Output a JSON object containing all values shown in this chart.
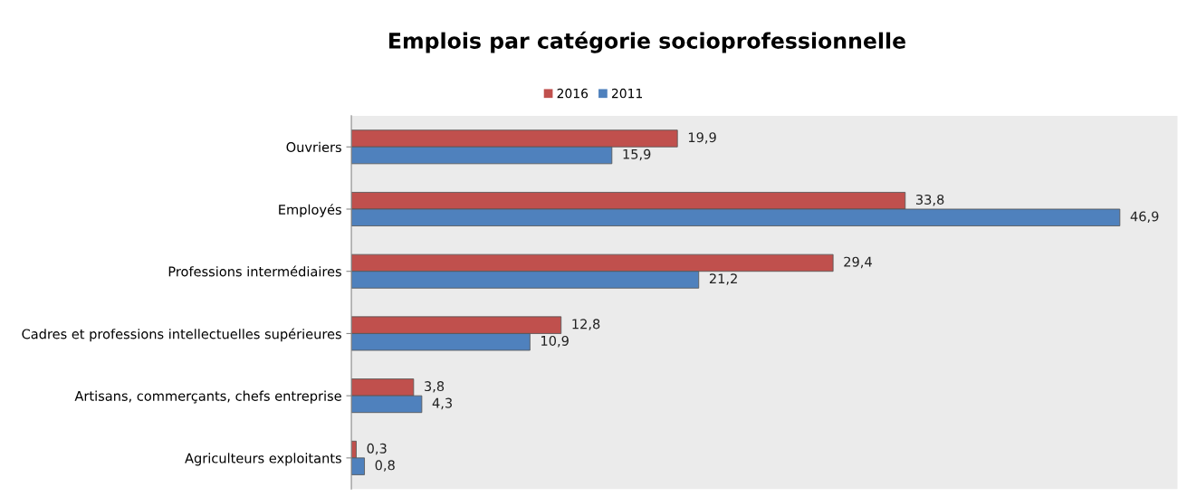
{
  "chart_data": {
    "type": "bar",
    "orientation": "horizontal",
    "title": "Emplois par catégorie socioprofessionnelle",
    "categories": [
      "Ouvriers",
      "Employés",
      "Professions intermédiaires",
      "Cadres et professions intellectuelles supérieures",
      "Artisans, commerçants, chefs entreprise",
      "Agriculteurs exploitants"
    ],
    "series": [
      {
        "name": "2016",
        "color": "#c0504d",
        "values": [
          19.9,
          33.8,
          29.4,
          12.8,
          3.8,
          0.3
        ],
        "value_labels": [
          "19,9",
          "33,8",
          "29,4",
          "12,8",
          "3,8",
          "0,3"
        ]
      },
      {
        "name": "2011",
        "color": "#4f81bd",
        "values": [
          15.9,
          46.9,
          21.2,
          10.9,
          4.3,
          0.8
        ],
        "value_labels": [
          "15,9",
          "46,9",
          "21,2",
          "10,9",
          "4,3",
          "0,8"
        ]
      }
    ],
    "legend": "top",
    "grid": false
  }
}
